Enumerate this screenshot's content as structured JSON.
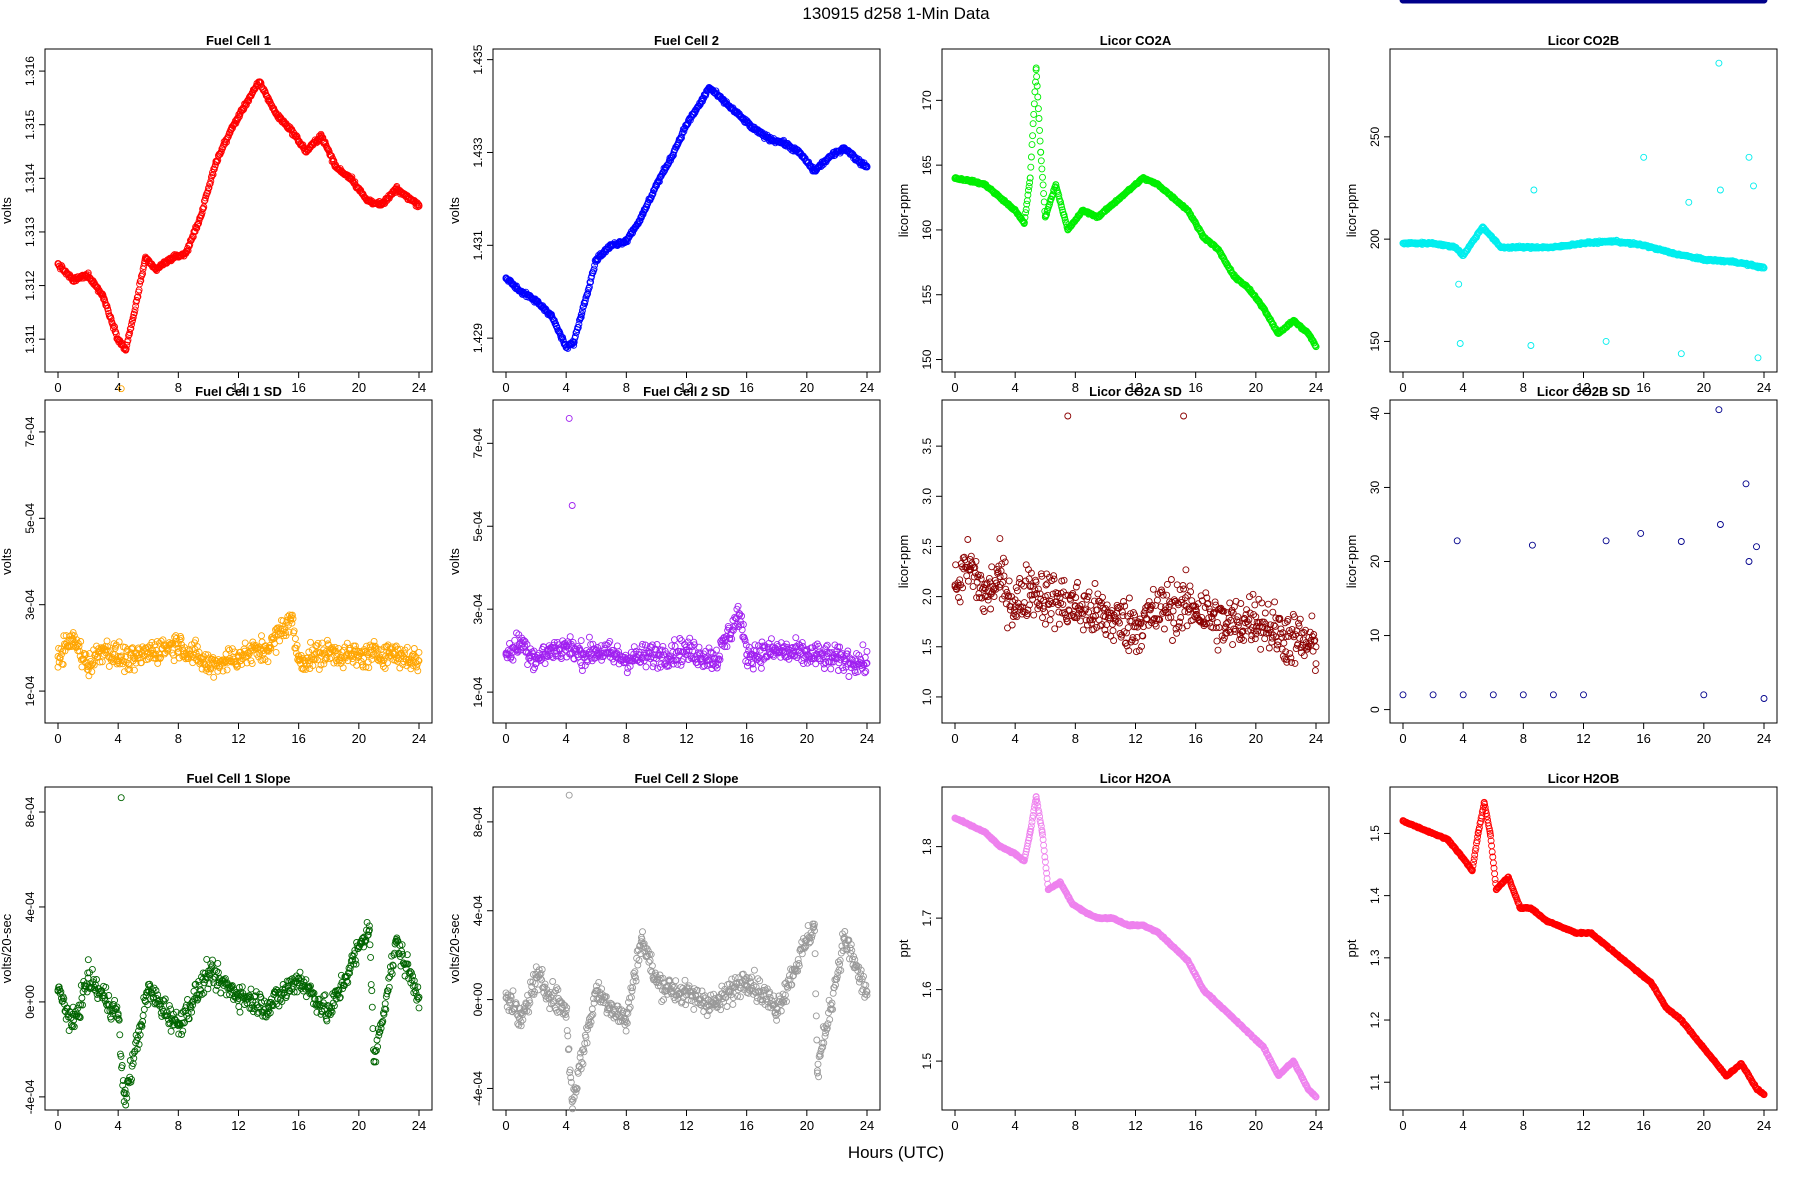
{
  "page": {
    "title": "130915    d258    1-Min Data",
    "xlabel": "Hours (UTC)",
    "x_ticks": [
      0,
      4,
      8,
      12,
      16,
      20,
      24
    ],
    "x_range": [
      0,
      24
    ]
  },
  "chart_data": [
    {
      "type": "scatter",
      "title": "Fuel Cell 1",
      "ylabel": "volts",
      "color": "#ff0000",
      "ylim": [
        1.3105,
        1.3163
      ],
      "yticks": [
        1.311,
        1.312,
        1.313,
        1.314,
        1.315,
        1.316
      ],
      "ytick_labels": [
        "1.311",
        "1.312",
        "1.313",
        "1.314",
        "1.315",
        "1.316"
      ],
      "series": [
        {
          "x": [
            0,
            1,
            2,
            3,
            4,
            4.5,
            5,
            5.8,
            6.5,
            7.5,
            8.5,
            9.5,
            10.5,
            11.5,
            12.5,
            13.4,
            14.5,
            15.5,
            16.5,
            17.5,
            18.5,
            19.5,
            20.5,
            21.5,
            22.5,
            23.5,
            24
          ],
          "y": [
            1.3124,
            1.3121,
            1.3122,
            1.3118,
            1.311,
            1.3108,
            1.3114,
            1.3125,
            1.3123,
            1.3125,
            1.3126,
            1.3133,
            1.3143,
            1.3149,
            1.3154,
            1.3158,
            1.3152,
            1.3149,
            1.3145,
            1.3148,
            1.3142,
            1.314,
            1.3136,
            1.3135,
            1.3138,
            1.3136,
            1.3135
          ]
        }
      ]
    },
    {
      "type": "scatter",
      "title": "Fuel Cell 2",
      "ylabel": "volts",
      "color": "#0000ff",
      "ylim": [
        1.4284,
        1.4351
      ],
      "yticks": [
        1.429,
        1.431,
        1.433,
        1.435
      ],
      "ytick_labels": [
        "1.429",
        "1.431",
        "1.433",
        "1.435"
      ],
      "series": [
        {
          "x": [
            0,
            1,
            2,
            3,
            4,
            4.5,
            5,
            6,
            7,
            8,
            9,
            10,
            11,
            12,
            13,
            13.5,
            14.5,
            15.5,
            16.5,
            17.5,
            18.5,
            19.5,
            20.5,
            21.5,
            22.5,
            23.5,
            24
          ],
          "y": [
            1.4303,
            1.43,
            1.4298,
            1.4295,
            1.4288,
            1.4289,
            1.4295,
            1.4307,
            1.431,
            1.4311,
            1.4316,
            1.4323,
            1.4329,
            1.4336,
            1.4341,
            1.4344,
            1.4341,
            1.4338,
            1.4335,
            1.4333,
            1.4332,
            1.433,
            1.4326,
            1.4329,
            1.4331,
            1.4328,
            1.4327
          ]
        }
      ]
    },
    {
      "type": "scatter",
      "title": "Licor CO2A",
      "ylabel": "licor-ppm",
      "color": "#00ee00",
      "ylim": [
        149.5,
        173.5
      ],
      "yticks": [
        150,
        155,
        160,
        165,
        170
      ],
      "ytick_labels": [
        "150",
        "155",
        "160",
        "165",
        "170"
      ],
      "series": [
        {
          "x": [
            0,
            1,
            2,
            3,
            4,
            4.6,
            5,
            5.4,
            5.7,
            6,
            6.7,
            7.5,
            8.5,
            9.5,
            10.5,
            11.5,
            12.5,
            13.5,
            14.5,
            15.5,
            16.5,
            17.5,
            18.5,
            19.5,
            20.5,
            21.5,
            22.5,
            23.5,
            24
          ],
          "y": [
            164,
            163.8,
            163.5,
            162.5,
            161.5,
            160.5,
            164,
            172.5,
            166,
            161,
            163.5,
            160,
            161.5,
            161,
            162,
            163,
            164,
            163.5,
            162.5,
            161.5,
            159.5,
            158.5,
            156.5,
            155.5,
            154,
            152,
            153,
            152,
            151
          ]
        }
      ]
    },
    {
      "type": "scatter",
      "title": "Licor CO2B",
      "ylabel": "licor-ppm",
      "color": "#00eeee",
      "ylim": [
        138,
        290
      ],
      "yticks": [
        150,
        200,
        250
      ],
      "ytick_labels": [
        "150",
        "200",
        "250"
      ],
      "series": [
        {
          "x": [
            0,
            2,
            3.5,
            4,
            5.3,
            6.5,
            8,
            10,
            12,
            14,
            16,
            18,
            20,
            22,
            24,
            3.7,
            3.8,
            8.5,
            8.7,
            13.5,
            16,
            18.5,
            19,
            21,
            21.1,
            23,
            23.3,
            23.6
          ],
          "y": [
            198,
            198,
            196,
            192,
            206,
            196,
            196,
            196,
            198,
            199,
            197,
            193,
            190,
            189,
            186,
            178,
            149,
            148,
            224,
            150,
            240,
            144,
            218,
            286,
            224,
            240,
            226,
            142
          ]
        }
      ]
    },
    {
      "type": "scatter",
      "title": "Fuel Cell 1 SD",
      "ylabel": "volts",
      "color": "#ffa500",
      "ylim": [
        4e-05,
        0.00076
      ],
      "yticks": [
        0.0001,
        0.0003,
        0.0005,
        0.0007
      ],
      "ytick_labels": [
        "1e-04",
        "3e-04",
        "5e-04",
        "7e-04"
      ],
      "series": [
        {
          "x": [
            0,
            1,
            2,
            3,
            4,
            4.2,
            5,
            6,
            8,
            10,
            12,
            14,
            15.5,
            16,
            18,
            20,
            22,
            24
          ],
          "y": [
            0.00018,
            0.00022,
            0.00016,
            0.0002,
            0.00018,
            0.0008,
            0.00017,
            0.00019,
            0.00021,
            0.00016,
            0.00018,
            0.0002,
            0.00027,
            0.00017,
            0.00019,
            0.00018,
            0.00019,
            0.00017
          ]
        }
      ]
    },
    {
      "type": "scatter",
      "title": "Fuel Cell 2 SD",
      "ylabel": "volts",
      "color": "#a020f0",
      "ylim": [
        4e-05,
        0.00079
      ],
      "yticks": [
        0.0001,
        0.0003,
        0.0005,
        0.0007
      ],
      "ytick_labels": [
        "1e-04",
        "3e-04",
        "5e-04",
        "7e-04"
      ],
      "series": [
        {
          "x": [
            0,
            1,
            2,
            3,
            4,
            4.2,
            4.4,
            5,
            6,
            8,
            10,
            12,
            14,
            15.5,
            16,
            18,
            20,
            22,
            24
          ],
          "y": [
            0.00019,
            0.00022,
            0.00018,
            0.0002,
            0.00021,
            0.00076,
            0.00055,
            0.00019,
            0.0002,
            0.00018,
            0.00019,
            0.0002,
            0.00018,
            0.00029,
            0.00019,
            0.0002,
            0.00019,
            0.00018,
            0.00017
          ]
        }
      ]
    },
    {
      "type": "scatter",
      "title": "Licor CO2A SD",
      "ylabel": "licor-ppm",
      "color": "#8b0000",
      "ylim": [
        0.8,
        3.9
      ],
      "yticks": [
        1.0,
        1.5,
        2.0,
        2.5,
        3.0,
        3.5
      ],
      "ytick_labels": [
        "1.0",
        "1.5",
        "2.0",
        "2.5",
        "3.0",
        "3.5"
      ],
      "series": [
        {
          "x": [
            0,
            1,
            2,
            3,
            4,
            5,
            6,
            7.5,
            8,
            10,
            12,
            14,
            15.2,
            16,
            18,
            20,
            22,
            24
          ],
          "y": [
            2.1,
            2.3,
            2.0,
            2.2,
            1.9,
            2.1,
            2.0,
            3.8,
            1.9,
            1.8,
            1.7,
            1.9,
            3.8,
            1.9,
            1.7,
            1.8,
            1.6,
            1.5
          ]
        }
      ]
    },
    {
      "type": "scatter",
      "title": "Licor CO2B SD",
      "ylabel": "licor-ppm",
      "color": "#00008b",
      "ylim": [
        -1,
        41
      ],
      "yticks": [
        0,
        10,
        20,
        30,
        40
      ],
      "ytick_labels": [
        "0",
        "10",
        "20",
        "30",
        "40"
      ],
      "series": [
        {
          "x": [
            0,
            2,
            3.6,
            4,
            6,
            8,
            8.6,
            10,
            12,
            13.5,
            15.8,
            18.5,
            20,
            21,
            21.1,
            22.8,
            23,
            23.5,
            24
          ],
          "y": [
            2,
            2,
            22.8,
            2,
            2,
            2,
            22.2,
            2,
            2,
            22.8,
            23.8,
            22.7,
            2,
            40.5,
            25,
            30.5,
            20,
            22,
            1.5
          ]
        }
      ]
    },
    {
      "type": "scatter",
      "title": "Fuel Cell 1 Slope",
      "ylabel": "volts/20-sec",
      "color": "#006400",
      "ylim": [
        -0.00043,
        0.00088
      ],
      "yticks": [
        -0.0004,
        0,
        0.0004,
        0.0008
      ],
      "ytick_labels": [
        "-4e-04",
        "0e+00",
        "4e-04",
        "8e-04"
      ],
      "series": [
        {
          "x": [
            0,
            1,
            2,
            4,
            4.2,
            4.4,
            6,
            8,
            10,
            12,
            14,
            16,
            18,
            20.7,
            21,
            22.5,
            24
          ],
          "y": [
            5e-05,
            -0.0001,
            0.0001,
            -5e-05,
            0.00086,
            -0.00042,
            5e-05,
            -0.0001,
            0.00012,
            3e-05,
            -2e-05,
            0.0001,
            -5e-05,
            0.00032,
            -0.00025,
            0.00025,
            2e-05
          ]
        }
      ]
    },
    {
      "type": "scatter",
      "title": "Fuel Cell 2 Slope",
      "ylabel": "volts/20-sec",
      "color": "#999999",
      "ylim": [
        -0.00047,
        0.00093
      ],
      "yticks": [
        -0.0004,
        0,
        0.0004,
        0.0008
      ],
      "ytick_labels": [
        "-4e-04",
        "0e+00",
        "4e-04",
        "8e-04"
      ],
      "series": [
        {
          "x": [
            0,
            1,
            2,
            4,
            4.2,
            4.4,
            6,
            8,
            9,
            10,
            12,
            14,
            16,
            18,
            20.5,
            20.7,
            22.5,
            24
          ],
          "y": [
            3e-05,
            -0.0001,
            0.0001,
            -5e-05,
            0.00092,
            -0.00046,
            4e-05,
            -0.0001,
            0.00028,
            8e-05,
            2e-05,
            -2e-05,
            0.0001,
            -4e-05,
            0.00034,
            -0.00032,
            0.00028,
            2e-05
          ]
        }
      ]
    },
    {
      "type": "scatter",
      "title": "Licor H2OA",
      "ylabel": "ppt",
      "color": "#ee82ee",
      "ylim": [
        1.44,
        1.875
      ],
      "yticks": [
        1.5,
        1.6,
        1.7,
        1.8
      ],
      "ytick_labels": [
        "1.5",
        "1.6",
        "1.7",
        "1.8"
      ],
      "series": [
        {
          "x": [
            0,
            1,
            2,
            3,
            4,
            4.6,
            5,
            5.4,
            5.8,
            6.2,
            7,
            7.8,
            8.5,
            9.5,
            10.5,
            11.5,
            12.5,
            13.5,
            14.5,
            15.5,
            16.5,
            17.5,
            18.5,
            19.5,
            20.5,
            21.5,
            22.5,
            23.5,
            24
          ],
          "y": [
            1.84,
            1.83,
            1.82,
            1.8,
            1.79,
            1.78,
            1.82,
            1.87,
            1.82,
            1.74,
            1.75,
            1.72,
            1.71,
            1.7,
            1.7,
            1.69,
            1.69,
            1.68,
            1.66,
            1.64,
            1.6,
            1.58,
            1.56,
            1.54,
            1.52,
            1.48,
            1.5,
            1.46,
            1.45
          ]
        }
      ]
    },
    {
      "type": "scatter",
      "title": "Licor H2OB",
      "ylabel": "ppt",
      "color": "#ff0000",
      "ylim": [
        1.065,
        1.565
      ],
      "yticks": [
        1.1,
        1.2,
        1.3,
        1.4,
        1.5
      ],
      "ytick_labels": [
        "1.1",
        "1.2",
        "1.3",
        "1.4",
        "1.5"
      ],
      "series": [
        {
          "x": [
            0,
            1,
            2,
            3,
            4,
            4.6,
            5,
            5.4,
            5.8,
            6.2,
            7,
            7.8,
            8.5,
            9.5,
            10.5,
            11.5,
            12.5,
            13.5,
            14.5,
            15.5,
            16.5,
            17.5,
            18.5,
            19.5,
            20.5,
            21.5,
            22.5,
            23.5,
            24
          ],
          "y": [
            1.52,
            1.51,
            1.5,
            1.49,
            1.46,
            1.44,
            1.5,
            1.55,
            1.5,
            1.41,
            1.43,
            1.38,
            1.38,
            1.36,
            1.35,
            1.34,
            1.34,
            1.32,
            1.3,
            1.28,
            1.26,
            1.22,
            1.2,
            1.17,
            1.14,
            1.11,
            1.13,
            1.09,
            1.08
          ]
        }
      ]
    }
  ]
}
